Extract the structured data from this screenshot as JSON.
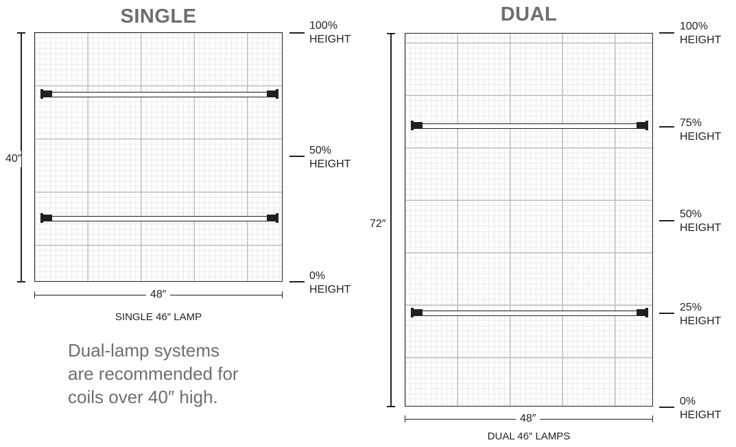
{
  "single": {
    "title": "SINGLE",
    "height_dim": "40″",
    "width_dim": "48″",
    "caption": "SINGLE 46″ LAMP",
    "levels": [
      {
        "pct": "100%",
        "word": "HEIGHT"
      },
      {
        "pct": "50%",
        "word": "HEIGHT"
      },
      {
        "pct": "0%",
        "word": "HEIGHT"
      }
    ]
  },
  "dual": {
    "title": "DUAL",
    "height_dim": "72″",
    "width_dim": "48″",
    "caption": "DUAL 46″ LAMPS",
    "levels": [
      {
        "pct": "100%",
        "word": "HEIGHT"
      },
      {
        "pct": "75%",
        "word": "HEIGHT"
      },
      {
        "pct": "50%",
        "word": "HEIGHT"
      },
      {
        "pct": "25%",
        "word": "HEIGHT"
      },
      {
        "pct": "0%",
        "word": "HEIGHT"
      }
    ]
  },
  "note": {
    "line1": "Dual-lamp systems",
    "line2": "are recommended for",
    "line3": "coils over 40″ high."
  },
  "colors": {
    "title_gray": "#6d6e71",
    "grid_major": "#bcbec0",
    "grid_minor": "#e6e7e8",
    "ink": "#231f20"
  }
}
